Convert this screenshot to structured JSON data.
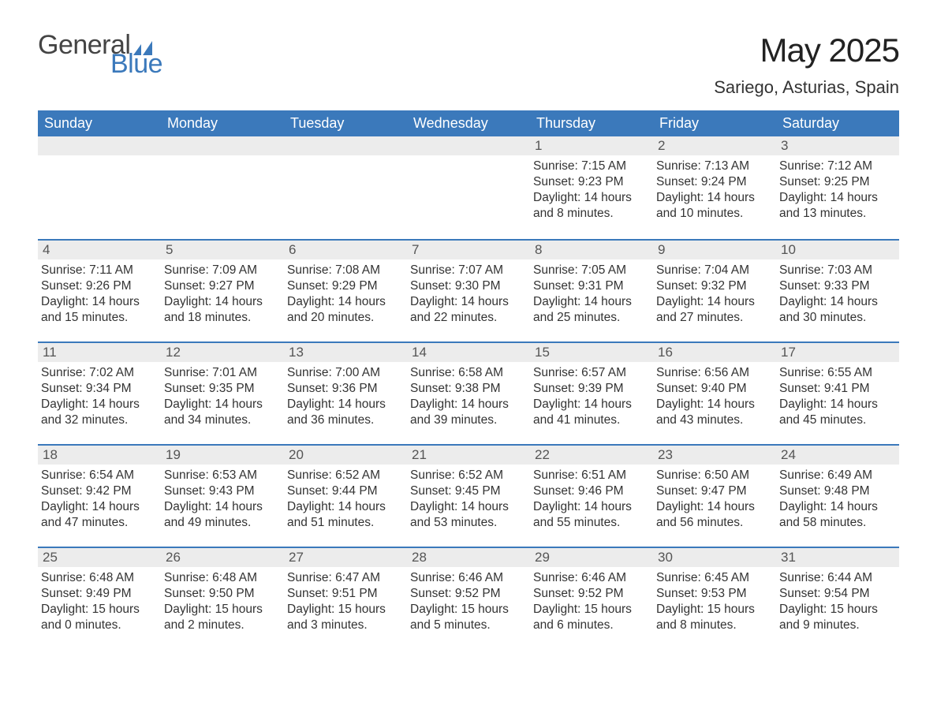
{
  "logo": {
    "word1": "General",
    "word2": "Blue",
    "accent": "#3b79bb",
    "text_color": "#444444"
  },
  "title": "May 2025",
  "location": "Sariego, Asturias, Spain",
  "colors": {
    "header_bg": "#3b79bb",
    "header_fg": "#ffffff",
    "daynum_bg": "#ececec",
    "body_bg": "#ffffff",
    "text": "#333333"
  },
  "weekdays": [
    "Sunday",
    "Monday",
    "Tuesday",
    "Wednesday",
    "Thursday",
    "Friday",
    "Saturday"
  ],
  "weeks": [
    [
      {
        "empty": true
      },
      {
        "empty": true
      },
      {
        "empty": true
      },
      {
        "empty": true
      },
      {
        "num": "1",
        "sunrise": "7:15 AM",
        "sunset": "9:23 PM",
        "day_h": "14",
        "day_m": "8"
      },
      {
        "num": "2",
        "sunrise": "7:13 AM",
        "sunset": "9:24 PM",
        "day_h": "14",
        "day_m": "10"
      },
      {
        "num": "3",
        "sunrise": "7:12 AM",
        "sunset": "9:25 PM",
        "day_h": "14",
        "day_m": "13"
      }
    ],
    [
      {
        "num": "4",
        "sunrise": "7:11 AM",
        "sunset": "9:26 PM",
        "day_h": "14",
        "day_m": "15"
      },
      {
        "num": "5",
        "sunrise": "7:09 AM",
        "sunset": "9:27 PM",
        "day_h": "14",
        "day_m": "18"
      },
      {
        "num": "6",
        "sunrise": "7:08 AM",
        "sunset": "9:29 PM",
        "day_h": "14",
        "day_m": "20"
      },
      {
        "num": "7",
        "sunrise": "7:07 AM",
        "sunset": "9:30 PM",
        "day_h": "14",
        "day_m": "22"
      },
      {
        "num": "8",
        "sunrise": "7:05 AM",
        "sunset": "9:31 PM",
        "day_h": "14",
        "day_m": "25"
      },
      {
        "num": "9",
        "sunrise": "7:04 AM",
        "sunset": "9:32 PM",
        "day_h": "14",
        "day_m": "27"
      },
      {
        "num": "10",
        "sunrise": "7:03 AM",
        "sunset": "9:33 PM",
        "day_h": "14",
        "day_m": "30"
      }
    ],
    [
      {
        "num": "11",
        "sunrise": "7:02 AM",
        "sunset": "9:34 PM",
        "day_h": "14",
        "day_m": "32"
      },
      {
        "num": "12",
        "sunrise": "7:01 AM",
        "sunset": "9:35 PM",
        "day_h": "14",
        "day_m": "34"
      },
      {
        "num": "13",
        "sunrise": "7:00 AM",
        "sunset": "9:36 PM",
        "day_h": "14",
        "day_m": "36"
      },
      {
        "num": "14",
        "sunrise": "6:58 AM",
        "sunset": "9:38 PM",
        "day_h": "14",
        "day_m": "39"
      },
      {
        "num": "15",
        "sunrise": "6:57 AM",
        "sunset": "9:39 PM",
        "day_h": "14",
        "day_m": "41"
      },
      {
        "num": "16",
        "sunrise": "6:56 AM",
        "sunset": "9:40 PM",
        "day_h": "14",
        "day_m": "43"
      },
      {
        "num": "17",
        "sunrise": "6:55 AM",
        "sunset": "9:41 PM",
        "day_h": "14",
        "day_m": "45"
      }
    ],
    [
      {
        "num": "18",
        "sunrise": "6:54 AM",
        "sunset": "9:42 PM",
        "day_h": "14",
        "day_m": "47"
      },
      {
        "num": "19",
        "sunrise": "6:53 AM",
        "sunset": "9:43 PM",
        "day_h": "14",
        "day_m": "49"
      },
      {
        "num": "20",
        "sunrise": "6:52 AM",
        "sunset": "9:44 PM",
        "day_h": "14",
        "day_m": "51"
      },
      {
        "num": "21",
        "sunrise": "6:52 AM",
        "sunset": "9:45 PM",
        "day_h": "14",
        "day_m": "53"
      },
      {
        "num": "22",
        "sunrise": "6:51 AM",
        "sunset": "9:46 PM",
        "day_h": "14",
        "day_m": "55"
      },
      {
        "num": "23",
        "sunrise": "6:50 AM",
        "sunset": "9:47 PM",
        "day_h": "14",
        "day_m": "56"
      },
      {
        "num": "24",
        "sunrise": "6:49 AM",
        "sunset": "9:48 PM",
        "day_h": "14",
        "day_m": "58"
      }
    ],
    [
      {
        "num": "25",
        "sunrise": "6:48 AM",
        "sunset": "9:49 PM",
        "day_h": "15",
        "day_m": "0"
      },
      {
        "num": "26",
        "sunrise": "6:48 AM",
        "sunset": "9:50 PM",
        "day_h": "15",
        "day_m": "2"
      },
      {
        "num": "27",
        "sunrise": "6:47 AM",
        "sunset": "9:51 PM",
        "day_h": "15",
        "day_m": "3"
      },
      {
        "num": "28",
        "sunrise": "6:46 AM",
        "sunset": "9:52 PM",
        "day_h": "15",
        "day_m": "5"
      },
      {
        "num": "29",
        "sunrise": "6:46 AM",
        "sunset": "9:52 PM",
        "day_h": "15",
        "day_m": "6"
      },
      {
        "num": "30",
        "sunrise": "6:45 AM",
        "sunset": "9:53 PM",
        "day_h": "15",
        "day_m": "8"
      },
      {
        "num": "31",
        "sunrise": "6:44 AM",
        "sunset": "9:54 PM",
        "day_h": "15",
        "day_m": "9"
      }
    ]
  ],
  "labels": {
    "sunrise": "Sunrise:",
    "sunset": "Sunset:",
    "daylight": "Daylight:",
    "hours_word": "hours",
    "and_word": "and",
    "minutes_word": "minutes."
  }
}
